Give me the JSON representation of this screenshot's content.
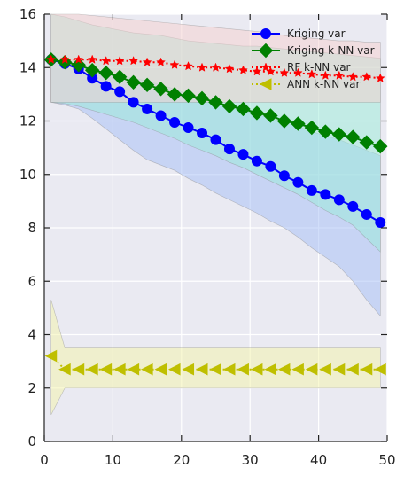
{
  "chart_data": {
    "type": "line",
    "xlabel": "",
    "ylabel": "",
    "xlim": [
      0,
      50
    ],
    "ylim": [
      0,
      16
    ],
    "xticks": [
      0,
      10,
      20,
      30,
      40,
      50
    ],
    "yticks": [
      0,
      2,
      4,
      6,
      8,
      10,
      12,
      14,
      16
    ],
    "grid": true,
    "legend_position": "top-right",
    "colors": {
      "background": "#eaeaf2",
      "grid": "#ffffff",
      "kriging": "#0000ff",
      "kriging_knn": "#008000",
      "rf_knn": "#ff0000",
      "ann_knn": "#bfbf00",
      "band_kriging": "#a4bdf5",
      "band_kriging_knn": "#99ecd7",
      "band_rf_knn": "#f6cfcd",
      "band_ann_knn": "#f4f4a8"
    },
    "x": [
      1,
      3,
      5,
      7,
      9,
      11,
      13,
      15,
      17,
      19,
      21,
      23,
      25,
      27,
      29,
      31,
      33,
      35,
      37,
      39,
      41,
      43,
      45,
      47,
      49
    ],
    "series": [
      {
        "name": "Kriging var",
        "marker": "circle",
        "linestyle": "solid",
        "values": [
          14.3,
          14.15,
          13.95,
          13.6,
          13.3,
          13.1,
          12.7,
          12.45,
          12.2,
          11.95,
          11.75,
          11.55,
          11.3,
          10.95,
          10.75,
          10.5,
          10.3,
          9.95,
          9.7,
          9.4,
          9.25,
          9.05,
          8.8,
          8.5,
          8.2
        ],
        "band_upper": [
          14.3,
          14.2,
          14.05,
          13.95,
          13.8,
          13.7,
          13.6,
          13.5,
          13.35,
          13.2,
          13.0,
          12.85,
          12.7,
          12.55,
          12.4,
          12.25,
          12.1,
          11.95,
          11.8,
          11.6,
          11.45,
          11.3,
          11.1,
          10.9,
          10.7
        ],
        "band_lower": [
          12.7,
          12.6,
          12.45,
          12.1,
          11.7,
          11.3,
          10.9,
          10.55,
          10.35,
          10.15,
          9.85,
          9.6,
          9.3,
          9.05,
          8.8,
          8.55,
          8.25,
          8.0,
          7.65,
          7.25,
          6.9,
          6.55,
          6.0,
          5.3,
          4.7
        ]
      },
      {
        "name": "Kriging k-NN var",
        "marker": "diamond",
        "linestyle": "solid",
        "values": [
          14.3,
          14.2,
          14.1,
          13.9,
          13.8,
          13.65,
          13.45,
          13.35,
          13.2,
          13.0,
          12.95,
          12.85,
          12.7,
          12.55,
          12.45,
          12.3,
          12.2,
          12.0,
          11.9,
          11.75,
          11.6,
          11.5,
          11.4,
          11.2,
          11.05
        ],
        "band_upper": [
          16.0,
          15.9,
          15.75,
          15.6,
          15.5,
          15.4,
          15.3,
          15.25,
          15.2,
          15.1,
          15.0,
          14.95,
          14.9,
          14.85,
          14.8,
          14.8,
          14.75,
          14.7,
          14.65,
          14.6,
          14.55,
          14.5,
          14.45,
          14.4,
          14.35
        ],
        "band_lower": [
          12.7,
          12.65,
          12.55,
          12.4,
          12.25,
          12.1,
          11.95,
          11.75,
          11.55,
          11.35,
          11.1,
          10.9,
          10.7,
          10.45,
          10.25,
          10.0,
          9.75,
          9.5,
          9.25,
          8.95,
          8.65,
          8.4,
          8.1,
          7.6,
          7.1
        ]
      },
      {
        "name": "RF k-NN var",
        "marker": "star",
        "linestyle": "dotted",
        "values": [
          14.3,
          14.3,
          14.3,
          14.3,
          14.25,
          14.25,
          14.25,
          14.2,
          14.2,
          14.1,
          14.05,
          14.0,
          14.0,
          13.95,
          13.9,
          13.85,
          13.85,
          13.8,
          13.8,
          13.75,
          13.7,
          13.7,
          13.65,
          13.65,
          13.6
        ],
        "band_upper": [
          16.0,
          16.0,
          16.0,
          15.95,
          15.9,
          15.85,
          15.8,
          15.75,
          15.7,
          15.65,
          15.6,
          15.55,
          15.5,
          15.45,
          15.4,
          15.35,
          15.3,
          15.2,
          15.15,
          15.1,
          15.05,
          15.0,
          15.0,
          14.95,
          14.95
        ],
        "band_lower": [
          12.7,
          12.7,
          12.7,
          12.7,
          12.7,
          12.7,
          12.7,
          12.7,
          12.7,
          12.7,
          12.7,
          12.7,
          12.7,
          12.7,
          12.7,
          12.7,
          12.7,
          12.7,
          12.7,
          12.7,
          12.7,
          12.7,
          12.7,
          12.7,
          12.7
        ]
      },
      {
        "name": "ANN k-NN var",
        "marker": "triangle-left",
        "linestyle": "dotted",
        "values": [
          3.2,
          2.7,
          2.7,
          2.7,
          2.7,
          2.7,
          2.7,
          2.7,
          2.7,
          2.7,
          2.7,
          2.7,
          2.7,
          2.7,
          2.7,
          2.7,
          2.7,
          2.7,
          2.7,
          2.7,
          2.7,
          2.7,
          2.7,
          2.7,
          2.7
        ],
        "band_upper": [
          5.3,
          3.5,
          3.5,
          3.5,
          3.5,
          3.5,
          3.5,
          3.5,
          3.5,
          3.5,
          3.5,
          3.5,
          3.5,
          3.5,
          3.5,
          3.5,
          3.5,
          3.5,
          3.5,
          3.5,
          3.5,
          3.5,
          3.5,
          3.5,
          3.5
        ],
        "band_lower": [
          1.0,
          2.0,
          2.0,
          2.0,
          2.0,
          2.0,
          2.0,
          2.0,
          2.0,
          2.0,
          2.0,
          2.0,
          2.0,
          2.0,
          2.0,
          2.0,
          2.0,
          2.0,
          2.0,
          2.0,
          2.0,
          2.0,
          2.0,
          2.0,
          2.0
        ]
      }
    ]
  }
}
